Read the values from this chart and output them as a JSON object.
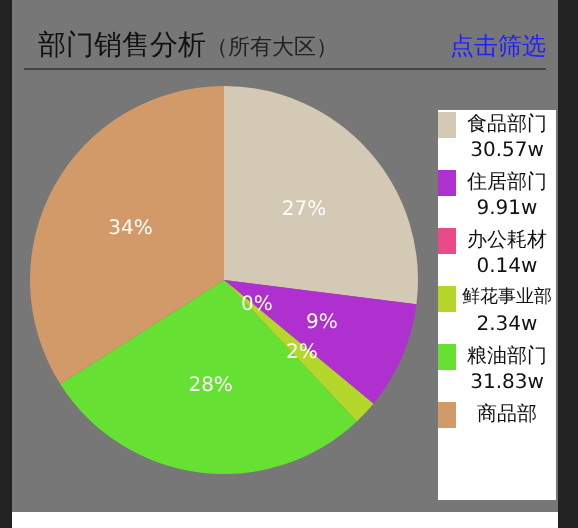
{
  "chart_data": {
    "type": "pie",
    "title": "部门销售分析",
    "subtitle": "（所有大区）",
    "categories": [
      "食品部门",
      "住居部门",
      "办公耗材",
      "鲜花事业部",
      "粮油部门",
      "商品部"
    ],
    "values": [
      27,
      9,
      0,
      2,
      28,
      34
    ],
    "value_labels": [
      "27%",
      "9%",
      "0%",
      "2%",
      "28%",
      "34%"
    ],
    "colors": [
      "#d4c9b5",
      "#b02fcf",
      "#e84a8a",
      "#b5d62a",
      "#67e034",
      "#d19a68"
    ],
    "legend": "right",
    "annotations": [
      "点击筛选",
      "30.57w",
      "9.91w",
      "0.14w",
      "2.34w",
      "31.83w"
    ]
  }
}
